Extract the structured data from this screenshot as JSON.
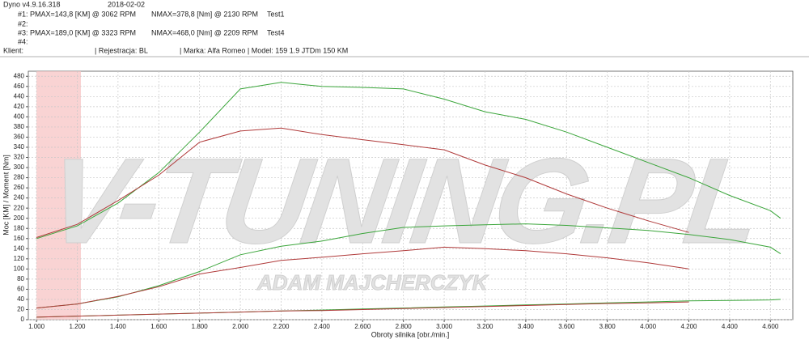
{
  "header": {
    "app": "Dyno v4.9.16.318",
    "date": "2018-02-02",
    "rows": [
      [
        "#1: PMAX=143,8 [KM] @ 3062 RPM",
        "NMAX=378,8 [Nm] @ 2130 RPM",
        "Test1"
      ],
      [
        "#2:"
      ],
      [
        "#3: PMAX=189,0 [KM] @ 3323 RPM",
        "NMAX=468,0 [Nm] @ 2209 RPM",
        "Test4"
      ],
      [
        "#4:"
      ]
    ],
    "client": [
      "Klient:",
      "| Rejestracja: BL",
      "| Marka: Alfa Romeo | Model: 159 1.9 JTDm 150 KM"
    ]
  },
  "chart_data": {
    "type": "line",
    "watermark": "V-TUNING.PL",
    "watermark_sub": "ADAM MAJCHERCZYK",
    "x_label": "Obroty silnika [obr./min.]",
    "y_label": "Moc [KM] / Moment [Nm]",
    "grid": true,
    "x": [
      1.0,
      1.2,
      1.4,
      1.6,
      1.8,
      2.0,
      2.2,
      2.4,
      2.6,
      2.8,
      3.0,
      3.2,
      3.4,
      3.6,
      3.8,
      4.0,
      4.2,
      4.4,
      4.6,
      4.65
    ],
    "series": [
      {
        "color": "#3aa53a",
        "values": [
          160,
          185,
          230,
          290,
          370,
          455,
          468,
          460,
          458,
          455,
          435,
          410,
          395,
          370,
          340,
          310,
          280,
          245,
          215,
          200
        ]
      },
      {
        "color": "#b03a3a",
        "values": [
          162,
          188,
          235,
          285,
          350,
          372,
          378,
          365,
          355,
          345,
          335,
          305,
          280,
          248,
          220,
          195,
          172,
          null,
          null,
          null
        ]
      },
      {
        "color": "#3aa53a",
        "values": [
          23,
          31,
          45,
          67,
          95,
          128,
          145,
          155,
          170,
          182,
          185,
          187,
          189,
          186,
          181,
          176,
          168,
          158,
          143,
          130
        ]
      },
      {
        "color": "#b03a3a",
        "values": [
          23,
          31,
          46,
          65,
          90,
          103,
          117,
          123,
          130,
          136,
          143,
          140,
          136,
          130,
          122,
          112,
          100,
          null,
          null,
          null
        ]
      },
      {
        "color": "#3aa53a",
        "values": [
          5,
          7,
          9,
          11,
          13,
          15,
          17,
          19,
          21,
          23,
          25,
          27,
          29,
          31,
          33,
          35,
          37,
          38,
          39,
          40
        ]
      },
      {
        "color": "#b03a3a",
        "values": [
          5,
          7,
          9,
          11,
          13,
          15,
          17,
          18,
          20,
          22,
          24,
          26,
          28,
          30,
          32,
          33,
          35,
          null,
          null,
          null
        ]
      }
    ],
    "xlim": [
      0.96,
      4.71
    ],
    "ylim": [
      0,
      490
    ],
    "xticks": [
      {
        "value": 1.0,
        "label": "1.000"
      },
      {
        "value": 1.2,
        "label": "1.200"
      },
      {
        "value": 1.4,
        "label": "1.400"
      },
      {
        "value": 1.6,
        "label": "1.600"
      },
      {
        "value": 1.8,
        "label": "1.800"
      },
      {
        "value": 2.0,
        "label": "2.000"
      },
      {
        "value": 2.2,
        "label": "2.200"
      },
      {
        "value": 2.4,
        "label": "2.400"
      },
      {
        "value": 2.6,
        "label": "2.600"
      },
      {
        "value": 2.8,
        "label": "2.800"
      },
      {
        "value": 3.0,
        "label": "3.000"
      },
      {
        "value": 3.2,
        "label": "3.200"
      },
      {
        "value": 3.4,
        "label": "3.400"
      },
      {
        "value": 3.6,
        "label": "3.600"
      },
      {
        "value": 3.8,
        "label": "3.800"
      },
      {
        "value": 4.0,
        "label": "4.000"
      },
      {
        "value": 4.2,
        "label": "4.200"
      },
      {
        "value": 4.4,
        "label": "4.400"
      },
      {
        "value": 4.6,
        "label": "4.600"
      }
    ],
    "yticks": [
      0,
      20,
      40,
      60,
      80,
      100,
      120,
      140,
      160,
      180,
      200,
      220,
      240,
      260,
      280,
      300,
      320,
      340,
      360,
      380,
      400,
      420,
      440,
      460,
      480
    ]
  }
}
